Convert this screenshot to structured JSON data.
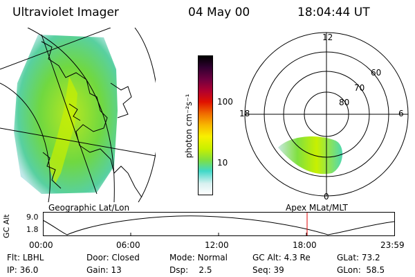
{
  "header": {
    "title": "Ultraviolet Imager",
    "date": "04 May 00",
    "time": "18:04:44 UT"
  },
  "colorbar": {
    "unit_label": "photon cm⁻²s⁻¹",
    "ticks": [
      "100",
      "10"
    ],
    "colors": [
      "#ffffff",
      "#d8f0f0",
      "#40d8c8",
      "#80e040",
      "#c8f000",
      "#f8f000",
      "#f8b800",
      "#f07000",
      "#e01000",
      "#b00030",
      "#700040",
      "#300030",
      "#000000"
    ]
  },
  "polar": {
    "mlt_labels": {
      "top": "12",
      "bottom": "0",
      "left": "18",
      "right": "6"
    },
    "lat_labels": [
      "60",
      "70",
      "80"
    ]
  },
  "timeline": {
    "left_title": "Geographic Lat/Lon",
    "right_title": "Apex MLat/MLT",
    "axis_label": "GC Alt",
    "y_ticks": [
      "9.0",
      "1.8"
    ],
    "x_ticks": [
      "00:00",
      "06:00",
      "12:00",
      "18:00",
      "23:59"
    ],
    "current_time_color": "#e00000"
  },
  "status": {
    "flt": {
      "label": "Flt:",
      "value": "LBHL"
    },
    "ip": {
      "label": "IP:",
      "value": "36.0"
    },
    "door": {
      "label": "Door:",
      "value": "Closed"
    },
    "gain": {
      "label": "Gain:",
      "value": "13"
    },
    "mode": {
      "label": "Mode:",
      "value": "Normal"
    },
    "dsp": {
      "label": "Dsp:",
      "value": "2.5"
    },
    "gcalt": {
      "label": "GC Alt:",
      "value": "4.3 Re"
    },
    "seq": {
      "label": "Seq:",
      "value": "39"
    },
    "glat": {
      "label": "GLat:",
      "value": "73.2"
    },
    "glon": {
      "label": "GLon:",
      "value": "58.5"
    }
  }
}
